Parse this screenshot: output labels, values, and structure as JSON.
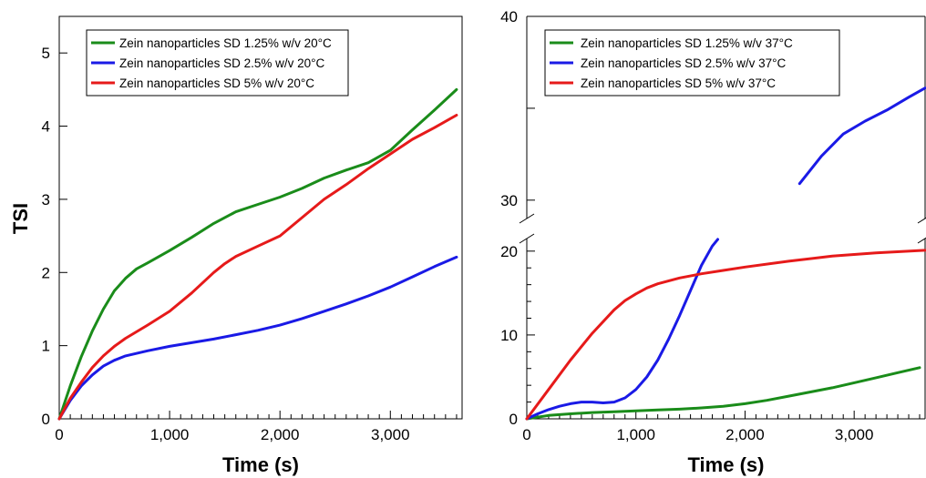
{
  "chart_data": [
    {
      "type": "line",
      "title": "",
      "xlabel": "Time (s)",
      "ylabel": "TSI",
      "xlim": [
        0,
        3650
      ],
      "ylim": [
        0,
        5.5
      ],
      "xticks": [
        0,
        1000,
        2000,
        3000
      ],
      "xtick_labels": [
        "0",
        "1,000",
        "2,000",
        "3,000"
      ],
      "yticks": [
        0,
        1,
        2,
        3,
        4,
        5
      ],
      "ytick_labels": [
        "0",
        "1",
        "2",
        "3",
        "4",
        "5"
      ],
      "grid": false,
      "legend_position": "top-left",
      "series": [
        {
          "name": "Zein nanoparticles SD 1.25% w/v 20°C",
          "color": "#1a8c1a",
          "x": [
            0,
            100,
            200,
            300,
            400,
            500,
            600,
            700,
            800,
            1000,
            1200,
            1400,
            1600,
            1800,
            2000,
            2200,
            2400,
            2600,
            2800,
            3000,
            3200,
            3400,
            3600
          ],
          "y": [
            0,
            0.45,
            0.85,
            1.2,
            1.5,
            1.75,
            1.92,
            2.05,
            2.13,
            2.3,
            2.48,
            2.67,
            2.83,
            2.93,
            3.03,
            3.15,
            3.29,
            3.4,
            3.5,
            3.67,
            3.95,
            4.22,
            4.5
          ]
        },
        {
          "name": "Zein nanoparticles SD 2.5% w/v 20°C",
          "color": "#1a1ae6",
          "x": [
            0,
            100,
            200,
            300,
            400,
            500,
            600,
            800,
            1000,
            1200,
            1400,
            1600,
            1800,
            2000,
            2200,
            2400,
            2600,
            2800,
            3000,
            3200,
            3400,
            3600
          ],
          "y": [
            0,
            0.25,
            0.45,
            0.6,
            0.72,
            0.8,
            0.86,
            0.93,
            0.99,
            1.04,
            1.09,
            1.15,
            1.21,
            1.28,
            1.37,
            1.47,
            1.57,
            1.68,
            1.8,
            1.94,
            2.08,
            2.21
          ]
        },
        {
          "name": "Zein nanoparticles SD 5% w/v 20°C",
          "color": "#e61a1a",
          "x": [
            0,
            100,
            200,
            300,
            400,
            500,
            600,
            800,
            1000,
            1200,
            1400,
            1500,
            1600,
            1800,
            2000,
            2200,
            2400,
            2600,
            2800,
            3000,
            3200,
            3400,
            3600
          ],
          "y": [
            0,
            0.28,
            0.5,
            0.7,
            0.86,
            0.99,
            1.1,
            1.28,
            1.47,
            1.72,
            2.0,
            2.12,
            2.22,
            2.36,
            2.5,
            2.75,
            3.0,
            3.2,
            3.42,
            3.62,
            3.82,
            3.98,
            4.15
          ]
        }
      ]
    },
    {
      "type": "line",
      "title": "",
      "xlabel": "Time (s)",
      "ylabel": "",
      "xlim": [
        0,
        3650
      ],
      "ylim_lower": [
        0,
        21.5
      ],
      "ylim_upper": [
        29,
        40
      ],
      "broken_y_axis": true,
      "xticks": [
        0,
        1000,
        2000,
        3000
      ],
      "xtick_labels": [
        "0",
        "1,000",
        "2,000",
        "3,000"
      ],
      "yticks": [
        0,
        10,
        20,
        30,
        40
      ],
      "ytick_labels": [
        "0",
        "10",
        "20",
        "30",
        "40"
      ],
      "grid": false,
      "legend_position": "top-left",
      "series": [
        {
          "name": "Zein nanoparticles SD 1.25% w/v 37°C",
          "color": "#1a8c1a",
          "x": [
            0,
            200,
            400,
            600,
            800,
            1000,
            1200,
            1400,
            1600,
            1800,
            2000,
            2200,
            2400,
            2600,
            2800,
            3000,
            3200,
            3400,
            3600
          ],
          "y": [
            0,
            0.4,
            0.6,
            0.75,
            0.85,
            0.95,
            1.05,
            1.15,
            1.3,
            1.5,
            1.8,
            2.2,
            2.7,
            3.2,
            3.7,
            4.3,
            4.9,
            5.5,
            6.1
          ]
        },
        {
          "name": "Zein nanoparticles SD 2.5% w/v 37°C",
          "color": "#1a1ae6",
          "x": [
            0,
            100,
            200,
            300,
            400,
            500,
            600,
            700,
            800,
            900,
            1000,
            1100,
            1200,
            1300,
            1400,
            1500,
            1600,
            1700,
            1750,
            null,
            2500,
            2700,
            2900,
            3100,
            3300,
            3500,
            3650
          ],
          "y": [
            0,
            0.6,
            1.1,
            1.5,
            1.8,
            2.0,
            2.0,
            1.9,
            2.0,
            2.5,
            3.5,
            5.0,
            7.0,
            9.5,
            12.3,
            15.3,
            18.3,
            20.6,
            21.4,
            null,
            30.9,
            32.4,
            33.6,
            34.3,
            34.9,
            35.6,
            36.1
          ]
        },
        {
          "name": "Zein nanoparticles SD 5% w/v 37°C",
          "color": "#e61a1a",
          "x": [
            0,
            200,
            400,
            600,
            800,
            900,
            1000,
            1100,
            1200,
            1400,
            1600,
            1800,
            2000,
            2400,
            2800,
            3200,
            3650
          ],
          "y": [
            0,
            3.5,
            7.0,
            10.2,
            13.0,
            14.1,
            14.9,
            15.6,
            16.1,
            16.8,
            17.3,
            17.7,
            18.1,
            18.8,
            19.4,
            19.8,
            20.1
          ]
        }
      ]
    }
  ]
}
